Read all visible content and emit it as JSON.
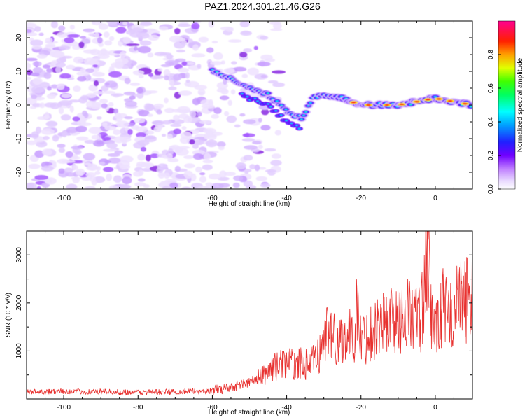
{
  "title": "PAZ1.2024.301.21.46.G26",
  "chart_data": [
    {
      "type": "heatmap",
      "xlabel": "Height of straight line (km)",
      "ylabel": "Frequency (Hz)",
      "xlim": [
        -110,
        10
      ],
      "ylim": [
        -25,
        25
      ],
      "x_ticks": [
        -100,
        -80,
        -60,
        -40,
        -20,
        0
      ],
      "y_ticks": [
        -20,
        -10,
        0,
        10,
        20
      ],
      "colorbar": {
        "label": "Normalized spectral amplitude",
        "range": [
          0,
          1
        ],
        "ticks": [
          0.0,
          0.2,
          0.4,
          0.6,
          0.8
        ],
        "tick_labels": [
          "0.0",
          "0.2",
          "0.4",
          "0.6",
          "0.8"
        ],
        "colors": [
          "#ffffff",
          "#d9b8ff",
          "#8a2be2",
          "#2020ff",
          "#00ffff",
          "#00ff00",
          "#ffff00",
          "#ff0000",
          "#ff00a0"
        ]
      },
      "signal_track": [
        {
          "x": -60,
          "y": 10
        },
        {
          "x": -55,
          "y": 8
        },
        {
          "x": -50,
          "y": 5
        },
        {
          "x": -45,
          "y": 3
        },
        {
          "x": -40,
          "y": -2
        },
        {
          "x": -36,
          "y": -4
        },
        {
          "x": -33,
          "y": 2
        },
        {
          "x": -30,
          "y": 3
        },
        {
          "x": -25,
          "y": 2
        },
        {
          "x": -20,
          "y": 0
        },
        {
          "x": -10,
          "y": 0
        },
        {
          "x": -5,
          "y": 1
        },
        {
          "x": 0,
          "y": 2
        },
        {
          "x": 5,
          "y": 1
        },
        {
          "x": 10,
          "y": 0
        }
      ],
      "noise_region": {
        "x_range": [
          -110,
          -50
        ],
        "y_range": [
          -25,
          25
        ]
      },
      "grid": false
    },
    {
      "type": "line",
      "xlabel": "Height of straight line (km)",
      "ylabel": "SNR (10 * v/v)",
      "xlim": [
        -110,
        10
      ],
      "ylim": [
        0,
        3500
      ],
      "x_ticks": [
        -100,
        -80,
        -60,
        -40,
        -20,
        0
      ],
      "y_ticks": [
        1000,
        2000,
        3000
      ],
      "series": [
        {
          "color": "#e8312f",
          "x": [
            -110,
            -100,
            -90,
            -80,
            -70,
            -60,
            -55,
            -50,
            -46,
            -44,
            -42,
            -40,
            -38,
            -36,
            -34,
            -32,
            -30,
            -29,
            -28,
            -26,
            -24,
            -22,
            -21,
            -20,
            -18,
            -16,
            -14,
            -12,
            -10,
            -8,
            -6,
            -4,
            -3,
            -2,
            -1,
            0,
            2,
            4,
            6,
            8,
            10
          ],
          "y": [
            150,
            160,
            150,
            140,
            150,
            170,
            250,
            350,
            500,
            650,
            700,
            800,
            700,
            750,
            700,
            850,
            1100,
            1600,
            1300,
            1200,
            1400,
            1200,
            1900,
            1200,
            1350,
            1500,
            1600,
            1700,
            1600,
            1800,
            1750,
            1650,
            2200,
            3000,
            1600,
            1500,
            1900,
            1700,
            2000,
            2100,
            2100
          ]
        }
      ],
      "grid": false
    }
  ]
}
